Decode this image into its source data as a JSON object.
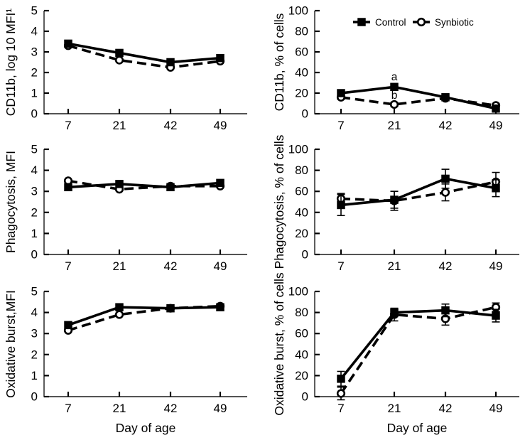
{
  "colors": {
    "foreground": "#000000",
    "background": "#ffffff"
  },
  "legend": {
    "items": [
      "Control",
      "Synbiotic"
    ]
  },
  "xlabel": "Day of age",
  "chart_data": [
    {
      "id": "cd11b-mfi",
      "type": "line",
      "ylabel": "CD11b, log 10 MFI¹",
      "ylim": [
        0,
        5
      ],
      "yticks": [
        0,
        1,
        2,
        3,
        4,
        5
      ],
      "categories": [
        "7",
        "21",
        "42",
        "49"
      ],
      "col": "left",
      "row": 0,
      "series": [
        {
          "name": "Control",
          "marker": "filled-square",
          "line": "solid",
          "values": [
            3.4,
            2.95,
            2.5,
            2.7
          ],
          "errors": [
            0,
            0,
            0,
            0
          ]
        },
        {
          "name": "Synbiotic",
          "marker": "open-circle",
          "line": "dashed",
          "values": [
            3.3,
            2.6,
            2.25,
            2.55
          ],
          "errors": [
            0,
            0,
            0,
            0
          ]
        }
      ]
    },
    {
      "id": "cd11b-pct",
      "type": "line",
      "ylabel": "CD11b, % of cells",
      "ylim": [
        0,
        100
      ],
      "yticks": [
        0,
        20,
        40,
        60,
        80,
        100
      ],
      "categories": [
        "7",
        "21",
        "42",
        "49"
      ],
      "col": "right",
      "row": 0,
      "legend": true,
      "annotations": [
        {
          "text": "a",
          "category_index": 1,
          "value": 36
        },
        {
          "text": "b",
          "category_index": 1,
          "value": 18
        }
      ],
      "series": [
        {
          "name": "Control",
          "marker": "filled-square",
          "line": "solid",
          "values": [
            20,
            26,
            16,
            5
          ],
          "errors": [
            3,
            3,
            2,
            2
          ]
        },
        {
          "name": "Synbiotic",
          "marker": "open-circle",
          "line": "dashed",
          "values": [
            16,
            9,
            15,
            8
          ],
          "errors": [
            2,
            2,
            2,
            2
          ]
        }
      ]
    },
    {
      "id": "phagocytosis-mfi",
      "type": "line",
      "ylabel": "Phagocytosis, MFI",
      "ylim": [
        0,
        5
      ],
      "yticks": [
        0,
        1,
        2,
        3,
        4,
        5
      ],
      "categories": [
        "7",
        "21",
        "42",
        "49"
      ],
      "col": "left",
      "row": 1,
      "series": [
        {
          "name": "Control",
          "marker": "filled-square",
          "line": "solid",
          "values": [
            3.2,
            3.35,
            3.2,
            3.4
          ],
          "errors": [
            0,
            0,
            0,
            0
          ]
        },
        {
          "name": "Synbiotic",
          "marker": "open-circle",
          "line": "dashed",
          "values": [
            3.5,
            3.1,
            3.25,
            3.25
          ],
          "errors": [
            0,
            0,
            0,
            0
          ]
        }
      ]
    },
    {
      "id": "phagocytosis-pct",
      "type": "line",
      "ylabel": "Phagocytosis, % of cells",
      "ylim": [
        0,
        100
      ],
      "yticks": [
        0,
        20,
        40,
        60,
        80,
        100
      ],
      "categories": [
        "7",
        "21",
        "42",
        "49"
      ],
      "col": "right",
      "row": 1,
      "series": [
        {
          "name": "Control",
          "marker": "filled-square",
          "line": "solid",
          "values": [
            47,
            52,
            72,
            63
          ],
          "errors": [
            10,
            8,
            9,
            8
          ]
        },
        {
          "name": "Synbiotic",
          "marker": "open-circle",
          "line": "dashed",
          "values": [
            53,
            51,
            59,
            69
          ],
          "errors": [
            5,
            9,
            8,
            9
          ]
        }
      ]
    },
    {
      "id": "oxidative-burst-mfi",
      "type": "line",
      "ylabel": "Oxidative burst,MFI",
      "xlabel": "Day of age",
      "ylim": [
        0,
        5
      ],
      "yticks": [
        0,
        1,
        2,
        3,
        4,
        5
      ],
      "categories": [
        "7",
        "21",
        "42",
        "49"
      ],
      "col": "left",
      "row": 2,
      "series": [
        {
          "name": "Control",
          "marker": "filled-square",
          "line": "solid",
          "values": [
            3.4,
            4.25,
            4.2,
            4.25
          ],
          "errors": [
            0,
            0,
            0,
            0
          ]
        },
        {
          "name": "Synbiotic",
          "marker": "open-circle",
          "line": "dashed",
          "values": [
            3.15,
            3.9,
            4.2,
            4.3
          ],
          "errors": [
            0,
            0,
            0,
            0
          ]
        }
      ]
    },
    {
      "id": "oxidative-burst-pct",
      "type": "line",
      "ylabel": "Oxidative burst, % of cells",
      "xlabel": "Day of age",
      "ylim": [
        0,
        100
      ],
      "yticks": [
        0,
        20,
        40,
        60,
        80,
        100
      ],
      "categories": [
        "7",
        "21",
        "42",
        "49"
      ],
      "col": "right",
      "row": 2,
      "series": [
        {
          "name": "Control",
          "marker": "filled-square",
          "line": "solid",
          "values": [
            17,
            80,
            82,
            77
          ],
          "errors": [
            7,
            4,
            6,
            6
          ]
        },
        {
          "name": "Synbiotic",
          "marker": "open-circle",
          "line": "dashed",
          "values": [
            3,
            78,
            74,
            85
          ],
          "errors": [
            6,
            6,
            6,
            4
          ]
        }
      ]
    }
  ]
}
